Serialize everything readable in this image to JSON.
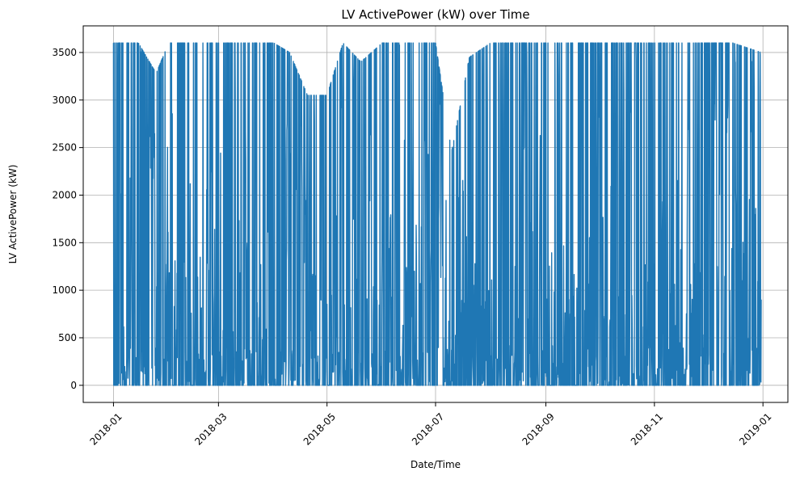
{
  "chart_data": {
    "type": "line",
    "title": "LV ActivePower (kW) over Time",
    "xlabel": "Date/Time",
    "ylabel": "LV ActivePower (kW)",
    "xlim": [
      "2017-12-15",
      "2019-01-15"
    ],
    "ylim": [
      -180,
      3780
    ],
    "x_ticks": [
      "2018-01",
      "2018-03",
      "2018-05",
      "2018-07",
      "2018-09",
      "2018-11",
      "2019-01"
    ],
    "x_tick_dates": [
      "2018-01-01",
      "2018-03-01",
      "2018-05-01",
      "2018-07-01",
      "2018-09-01",
      "2018-11-01",
      "2019-01-01"
    ],
    "y_ticks": [
      0,
      500,
      1000,
      1500,
      2000,
      2500,
      3000,
      3500
    ],
    "grid": true,
    "line_color": "#1f77b4",
    "x_tick_rotation_deg": 45,
    "series": [
      {
        "name": "",
        "note_shape": "dense 10-minute readings between 0 and ~3600 kW",
        "envelope_max": [
          [
            "2018-01-01",
            3600
          ],
          [
            "2018-01-15",
            3600
          ],
          [
            "2018-01-25",
            3280
          ],
          [
            "2018-02-01",
            3600
          ],
          [
            "2018-02-15",
            3600
          ],
          [
            "2018-03-01",
            3600
          ],
          [
            "2018-03-15",
            3600
          ],
          [
            "2018-04-01",
            3600
          ],
          [
            "2018-04-10",
            3500
          ],
          [
            "2018-04-20",
            3050
          ],
          [
            "2018-05-01",
            3050
          ],
          [
            "2018-05-10",
            3600
          ],
          [
            "2018-05-20",
            3400
          ],
          [
            "2018-06-01",
            3600
          ],
          [
            "2018-06-15",
            3600
          ],
          [
            "2018-07-01",
            3600
          ],
          [
            "2018-07-10",
            2450
          ],
          [
            "2018-07-20",
            3450
          ],
          [
            "2018-08-01",
            3600
          ],
          [
            "2018-08-15",
            3600
          ],
          [
            "2018-09-01",
            3600
          ],
          [
            "2018-09-15",
            3600
          ],
          [
            "2018-10-01",
            3600
          ],
          [
            "2018-10-15",
            3600
          ],
          [
            "2018-11-01",
            3600
          ],
          [
            "2018-11-15",
            3600
          ],
          [
            "2018-12-01",
            3600
          ],
          [
            "2018-12-15",
            3600
          ],
          [
            "2018-12-31",
            3500
          ]
        ]
      }
    ]
  }
}
